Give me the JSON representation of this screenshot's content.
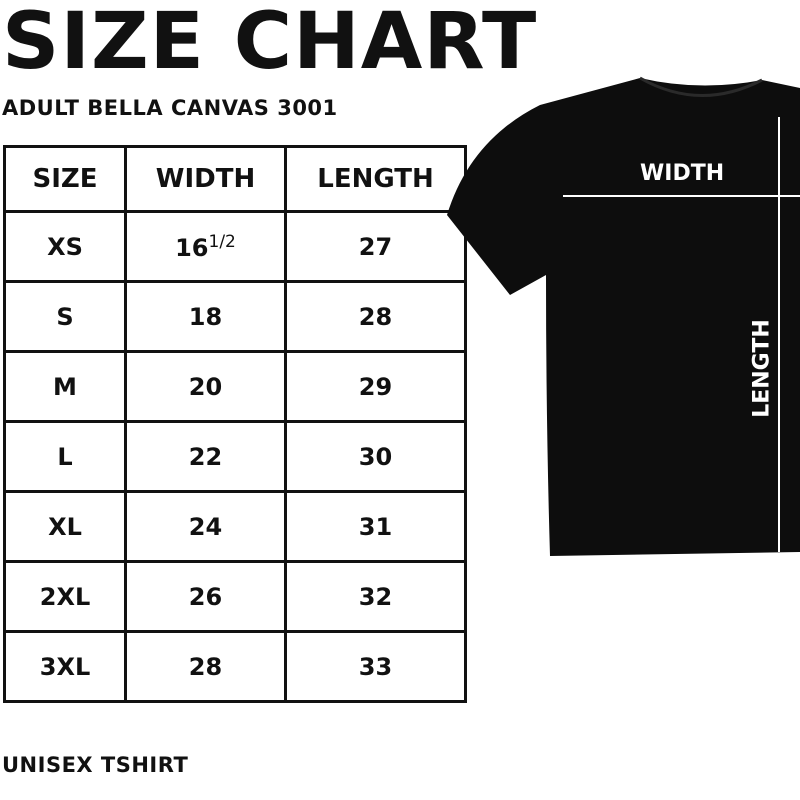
{
  "title": "SIZE CHART",
  "subtitle": "ADULT BELLA CANVAS 3001",
  "footer": "UNISEX TSHIRT",
  "table": {
    "headers": [
      "SIZE",
      "WIDTH",
      "LENGTH"
    ],
    "rows": [
      {
        "size": "XS",
        "width": "16",
        "width_fraction": "1/2",
        "length": "27"
      },
      {
        "size": "S",
        "width": "18",
        "length": "28"
      },
      {
        "size": "M",
        "width": "20",
        "length": "29"
      },
      {
        "size": "L",
        "width": "22",
        "length": "30"
      },
      {
        "size": "XL",
        "width": "24",
        "length": "31"
      },
      {
        "size": "2XL",
        "width": "26",
        "length": "32"
      },
      {
        "size": "3XL",
        "width": "28",
        "length": "33"
      }
    ]
  },
  "diagram": {
    "width_label": "WIDTH",
    "length_label": "LENGTH",
    "shirt_color": "#0d0d0d",
    "line_color": "#ffffff"
  }
}
